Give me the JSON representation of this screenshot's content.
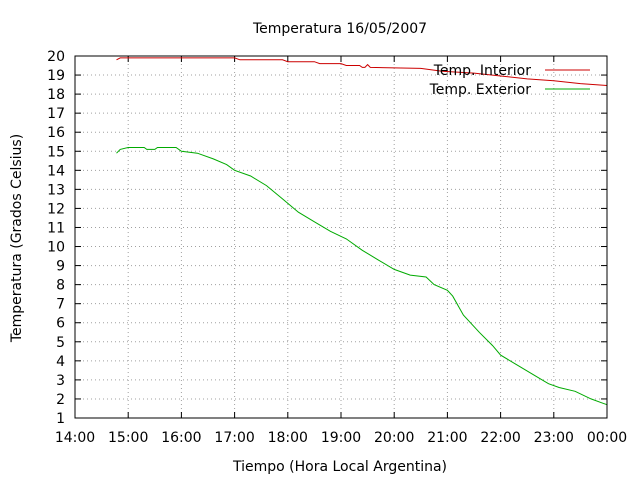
{
  "chart_data": {
    "type": "line",
    "title": "Temperatura 16/05/2007",
    "xlabel": "Tiempo (Hora Local Argentina)",
    "ylabel": "Temperatura (Grados Celsius)",
    "x_unit": "hour of day",
    "xlim": [
      14,
      24
    ],
    "ylim": [
      1,
      20
    ],
    "xticks": [
      {
        "v": 14,
        "label": "14:00"
      },
      {
        "v": 15,
        "label": "15:00"
      },
      {
        "v": 16,
        "label": "16:00"
      },
      {
        "v": 17,
        "label": "17:00"
      },
      {
        "v": 18,
        "label": "18:00"
      },
      {
        "v": 19,
        "label": "19:00"
      },
      {
        "v": 20,
        "label": "20:00"
      },
      {
        "v": 21,
        "label": "21:00"
      },
      {
        "v": 22,
        "label": "22:00"
      },
      {
        "v": 23,
        "label": "23:00"
      },
      {
        "v": 24,
        "label": "00:00"
      }
    ],
    "yticks": [
      1,
      2,
      3,
      4,
      5,
      6,
      7,
      8,
      9,
      10,
      11,
      12,
      13,
      14,
      15,
      16,
      17,
      18,
      19,
      20
    ],
    "grid": "dotted",
    "legend_position": "top-right",
    "series": [
      {
        "name": "Temp. Interior",
        "color": "#cc0000",
        "points": [
          [
            14.78,
            19.8
          ],
          [
            14.85,
            19.9
          ],
          [
            15.5,
            19.9
          ],
          [
            16.5,
            19.9
          ],
          [
            17.0,
            19.9
          ],
          [
            17.1,
            19.8
          ],
          [
            17.9,
            19.8
          ],
          [
            18.0,
            19.7
          ],
          [
            18.5,
            19.7
          ],
          [
            18.6,
            19.6
          ],
          [
            19.0,
            19.6
          ],
          [
            19.1,
            19.5
          ],
          [
            19.35,
            19.5
          ],
          [
            19.4,
            19.4
          ],
          [
            19.45,
            19.4
          ],
          [
            19.5,
            19.55
          ],
          [
            19.55,
            19.4
          ],
          [
            20.5,
            19.35
          ],
          [
            20.9,
            19.2
          ],
          [
            21.5,
            19.1
          ],
          [
            22.0,
            18.95
          ],
          [
            22.5,
            18.8
          ],
          [
            23.0,
            18.7
          ],
          [
            23.5,
            18.55
          ],
          [
            24.0,
            18.45
          ]
        ]
      },
      {
        "name": "Temp. Exterior",
        "color": "#00aa00",
        "points": [
          [
            14.78,
            14.9
          ],
          [
            14.85,
            15.1
          ],
          [
            15.0,
            15.2
          ],
          [
            15.3,
            15.2
          ],
          [
            15.35,
            15.1
          ],
          [
            15.5,
            15.1
          ],
          [
            15.55,
            15.2
          ],
          [
            15.9,
            15.2
          ],
          [
            16.0,
            15.0
          ],
          [
            16.3,
            14.9
          ],
          [
            16.6,
            14.6
          ],
          [
            16.85,
            14.3
          ],
          [
            17.0,
            14.0
          ],
          [
            17.3,
            13.7
          ],
          [
            17.6,
            13.2
          ],
          [
            17.9,
            12.5
          ],
          [
            18.2,
            11.8
          ],
          [
            18.5,
            11.3
          ],
          [
            18.8,
            10.8
          ],
          [
            19.1,
            10.4
          ],
          [
            19.4,
            9.8
          ],
          [
            19.7,
            9.3
          ],
          [
            20.0,
            8.8
          ],
          [
            20.3,
            8.5
          ],
          [
            20.6,
            8.4
          ],
          [
            20.75,
            8.0
          ],
          [
            21.0,
            7.7
          ],
          [
            21.1,
            7.4
          ],
          [
            21.3,
            6.4
          ],
          [
            21.6,
            5.5
          ],
          [
            21.85,
            4.8
          ],
          [
            22.0,
            4.3
          ],
          [
            22.3,
            3.8
          ],
          [
            22.6,
            3.3
          ],
          [
            22.9,
            2.8
          ],
          [
            23.1,
            2.6
          ],
          [
            23.4,
            2.4
          ],
          [
            23.7,
            2.0
          ],
          [
            23.9,
            1.8
          ],
          [
            24.0,
            1.7
          ]
        ]
      }
    ]
  }
}
